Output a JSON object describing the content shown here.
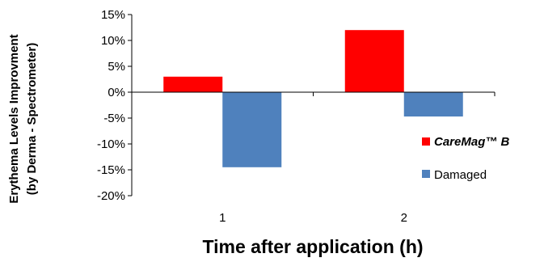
{
  "chart_data": {
    "type": "bar",
    "title": "",
    "xlabel": "Time after application (h)",
    "ylabel_line1": "Erythema Levels Improvment",
    "ylabel_line2": "(by Derma - Spectrometer)",
    "categories": [
      "1",
      "2"
    ],
    "series": [
      {
        "name": "CareMag™ B",
        "color": "#ff0000",
        "values": [
          0.03,
          0.12
        ]
      },
      {
        "name": "Damaged",
        "color": "#4f81bd",
        "values": [
          -0.145,
          -0.047
        ]
      }
    ],
    "ylim": [
      -0.2,
      0.15
    ],
    "yticks": [
      0.15,
      0.1,
      0.05,
      0.0,
      -0.05,
      -0.1,
      -0.15,
      -0.2
    ],
    "ytick_labels": [
      "15%",
      "10%",
      "5%",
      "0%",
      "-5%",
      "-10%",
      "-15%",
      "-20%"
    ],
    "legend_position": "right",
    "grid": false
  }
}
